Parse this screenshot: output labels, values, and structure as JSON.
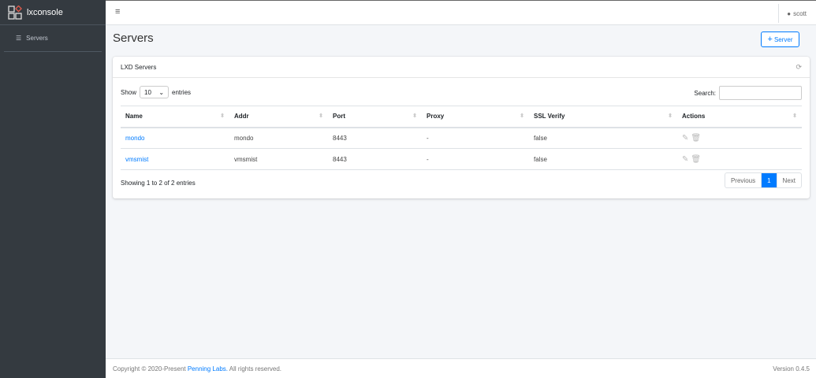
{
  "app": {
    "name": "lxconsole"
  },
  "sidebar": {
    "items": [
      {
        "label": "Servers",
        "icon": "server-icon"
      }
    ]
  },
  "topbar": {
    "user": "scott"
  },
  "page": {
    "title": "Servers",
    "add_label": "Server"
  },
  "card": {
    "title": "LXD Servers",
    "show_label": "Show",
    "entries_label": "entries",
    "page_size": "10",
    "search_label": "Search:",
    "search_value": "",
    "columns": [
      "Name",
      "Addr",
      "Port",
      "Proxy",
      "SSL Verify",
      "Actions"
    ],
    "rows": [
      {
        "name": "mondo",
        "addr": "mondo",
        "port": "8443",
        "proxy": "-",
        "ssl_verify": "false"
      },
      {
        "name": "vmsmist",
        "addr": "vmsmist",
        "port": "8443",
        "proxy": "-",
        "ssl_verify": "false"
      }
    ],
    "info": "Showing 1 to 2 of 2 entries",
    "pager": {
      "previous": "Previous",
      "current": "1",
      "next": "Next"
    }
  },
  "footer": {
    "copyright": "Copyright © 2020-Present",
    "company": "Penning Labs.",
    "rights": "All rights reserved.",
    "version": "Version 0.4.5"
  },
  "colors": {
    "accent": "#007bff",
    "sidebar": "#343a40"
  }
}
